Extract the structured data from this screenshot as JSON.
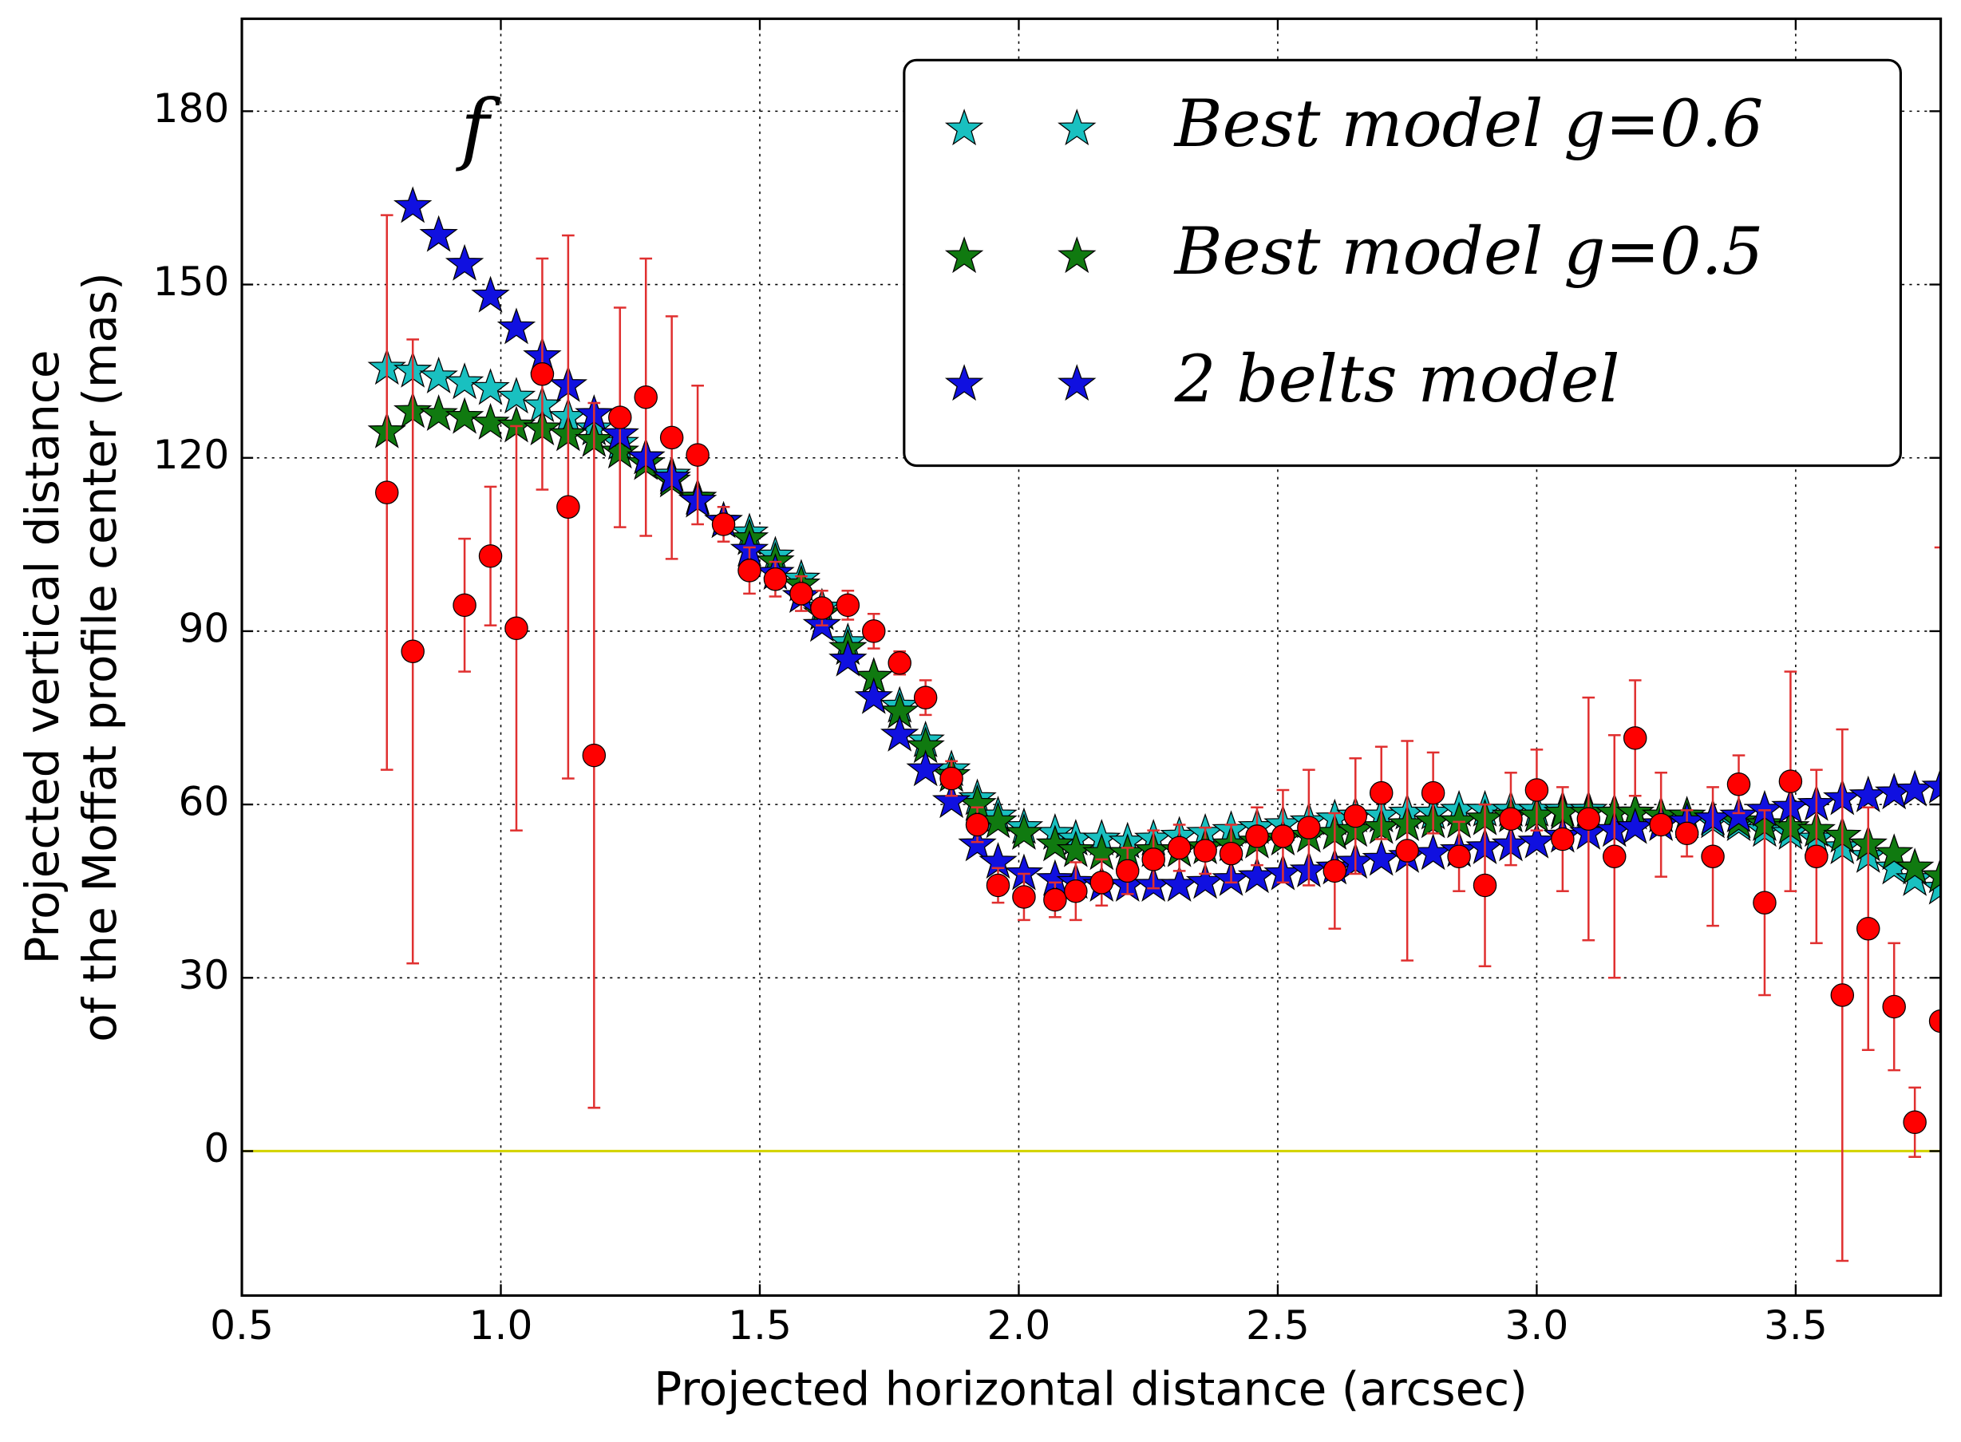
{
  "chart_data": {
    "type": "scatter",
    "xlabel": "Projected horizontal distance (arcsec)",
    "ylabel": [
      "Projected vertical distance",
      "of the Moffat profile center (mas)"
    ],
    "xlim": [
      0.5,
      3.78
    ],
    "ylim": [
      -25,
      196
    ],
    "xticks": [
      0.5,
      {
        "value": 1,
        "label": "1.0"
      },
      1.5,
      {
        "value": 2,
        "label": "2.0"
      },
      2.5,
      {
        "value": 3,
        "label": "3.0"
      },
      3.5
    ],
    "yticks": [
      0,
      30,
      60,
      90,
      120,
      150,
      180
    ],
    "grid": true,
    "legend": "upper right",
    "hline": {
      "value": 0,
      "color": "#d4d400"
    },
    "annotations": [
      {
        "text": "f",
        "x": 0.95,
        "y": 176
      }
    ],
    "x": [
      0.78,
      0.83,
      0.88,
      0.93,
      0.98,
      1.03,
      1.08,
      1.13,
      1.18,
      1.23,
      1.28,
      1.33,
      1.38,
      1.43,
      1.48,
      1.53,
      1.58,
      1.62,
      1.67,
      1.72,
      1.77,
      1.82,
      1.87,
      1.92,
      1.96,
      2.01,
      2.07,
      2.11,
      2.16,
      2.21,
      2.26,
      2.31,
      2.36,
      2.41,
      2.46,
      2.51,
      2.56,
      2.61,
      2.65,
      2.7,
      2.75,
      2.8,
      2.85,
      2.9,
      2.95,
      3.0,
      3.05,
      3.1,
      3.15,
      3.19,
      3.24,
      3.29,
      3.34,
      3.39,
      3.44,
      3.49,
      3.54,
      3.59,
      3.64,
      3.69,
      3.73,
      3.78
    ],
    "series": [
      {
        "name": "Best model g=0.6",
        "marker": "star",
        "color": "#19c0c0",
        "values": [
          135.5,
          135,
          134,
          133,
          132,
          130.5,
          129,
          127,
          125,
          122.5,
          120,
          117,
          113,
          109,
          107,
          103,
          99,
          94,
          88,
          82,
          77,
          71,
          66,
          61,
          58,
          56,
          55,
          54,
          54,
          53.5,
          54,
          54.5,
          55,
          55.5,
          56,
          56.5,
          57,
          57.5,
          58,
          58,
          58.5,
          58.5,
          59,
          59,
          59,
          59,
          59,
          59,
          58.5,
          58.5,
          58,
          57.5,
          57,
          56.5,
          55.5,
          55,
          54,
          52.5,
          51,
          49,
          47,
          45.5
        ]
      },
      {
        "name": "Best model g=0.5",
        "marker": "star",
        "color": "#107a10",
        "values": [
          124.5,
          128,
          127.5,
          127,
          126,
          125.5,
          125,
          124,
          123,
          121,
          119,
          116,
          113,
          109,
          106,
          102,
          98,
          93,
          87,
          82,
          76,
          70,
          65,
          60,
          57,
          55,
          53,
          52,
          51.5,
          51.5,
          52,
          52,
          52.5,
          53,
          53.5,
          54,
          54.5,
          55,
          55.5,
          56,
          56.5,
          57,
          57,
          57.5,
          58,
          58,
          58.5,
          58.5,
          58.5,
          58.5,
          58,
          58,
          57.5,
          57,
          56.5,
          56,
          55.5,
          54.5,
          53,
          51.5,
          49,
          47.5
        ]
      },
      {
        "name": "2 belts model",
        "marker": "star",
        "color": "#1010e0",
        "values": [
          null,
          163.5,
          158.5,
          153.5,
          148,
          142.5,
          137.5,
          132.5,
          127.5,
          124,
          120,
          116.5,
          112.5,
          109,
          104,
          100,
          96,
          91,
          85,
          78.5,
          72,
          66,
          60.5,
          53,
          50,
          48,
          47,
          46.5,
          46,
          46,
          46,
          46,
          46.5,
          47,
          47.5,
          48,
          48.5,
          49,
          50,
          50.5,
          51,
          51.5,
          52,
          52.5,
          53,
          53.5,
          54.5,
          55,
          55.5,
          56,
          56.5,
          57,
          57.5,
          58,
          59,
          59.5,
          60,
          61,
          61.5,
          62,
          62.5,
          63
        ]
      },
      {
        "marker": "circle",
        "color": "#ff0000",
        "error_color": "#e03030",
        "x": [
          0.78,
          0.83,
          0.93,
          0.98,
          1.03,
          1.08,
          1.13,
          1.18,
          1.23,
          1.28,
          1.33,
          1.38,
          1.43,
          1.48,
          1.53,
          1.58,
          1.62,
          1.67,
          1.72,
          1.77,
          1.82,
          1.87,
          1.92,
          1.96,
          2.01,
          2.07,
          2.11,
          2.16,
          2.21,
          2.26,
          2.31,
          2.36,
          2.41,
          2.46,
          2.51,
          2.56,
          2.61,
          2.65,
          2.7,
          2.75,
          2.8,
          2.85,
          2.9,
          2.95,
          3.0,
          3.05,
          3.1,
          3.15,
          3.19,
          3.24,
          3.29,
          3.34,
          3.39,
          3.44,
          3.49,
          3.54,
          3.59,
          3.64,
          3.69,
          3.73,
          3.78
        ],
        "values": [
          114,
          86.5,
          94.5,
          103,
          90.5,
          134.5,
          111.5,
          68.5,
          127,
          130.5,
          123.5,
          120.5,
          108.5,
          100.5,
          99,
          96.5,
          94,
          94.5,
          90,
          84.5,
          78.5,
          64.5,
          56.5,
          46,
          44,
          43.5,
          45,
          46.5,
          48.5,
          50.5,
          52.5,
          52,
          51.5,
          54.5,
          54.5,
          56,
          48.5,
          58,
          62,
          52,
          62,
          51,
          46,
          57.5,
          62.5,
          54,
          57.5,
          51,
          71.5,
          56.5,
          55,
          51,
          63.5,
          43,
          64,
          51,
          27,
          38.5,
          25,
          5,
          22.5
        ],
        "errors": [
          48,
          54,
          11.5,
          12,
          35,
          20,
          47,
          61,
          19,
          24,
          21,
          12,
          3,
          4,
          3,
          3,
          3,
          2.5,
          3,
          2,
          3,
          3,
          3,
          3,
          4,
          3,
          5,
          4,
          4,
          5,
          4,
          4,
          5,
          5,
          8,
          10,
          10,
          10,
          8,
          19,
          7,
          6,
          14,
          8,
          7,
          9,
          21,
          21,
          10,
          9,
          4,
          12,
          5,
          16,
          19,
          15,
          46,
          21,
          11,
          6,
          82
        ]
      }
    ]
  }
}
